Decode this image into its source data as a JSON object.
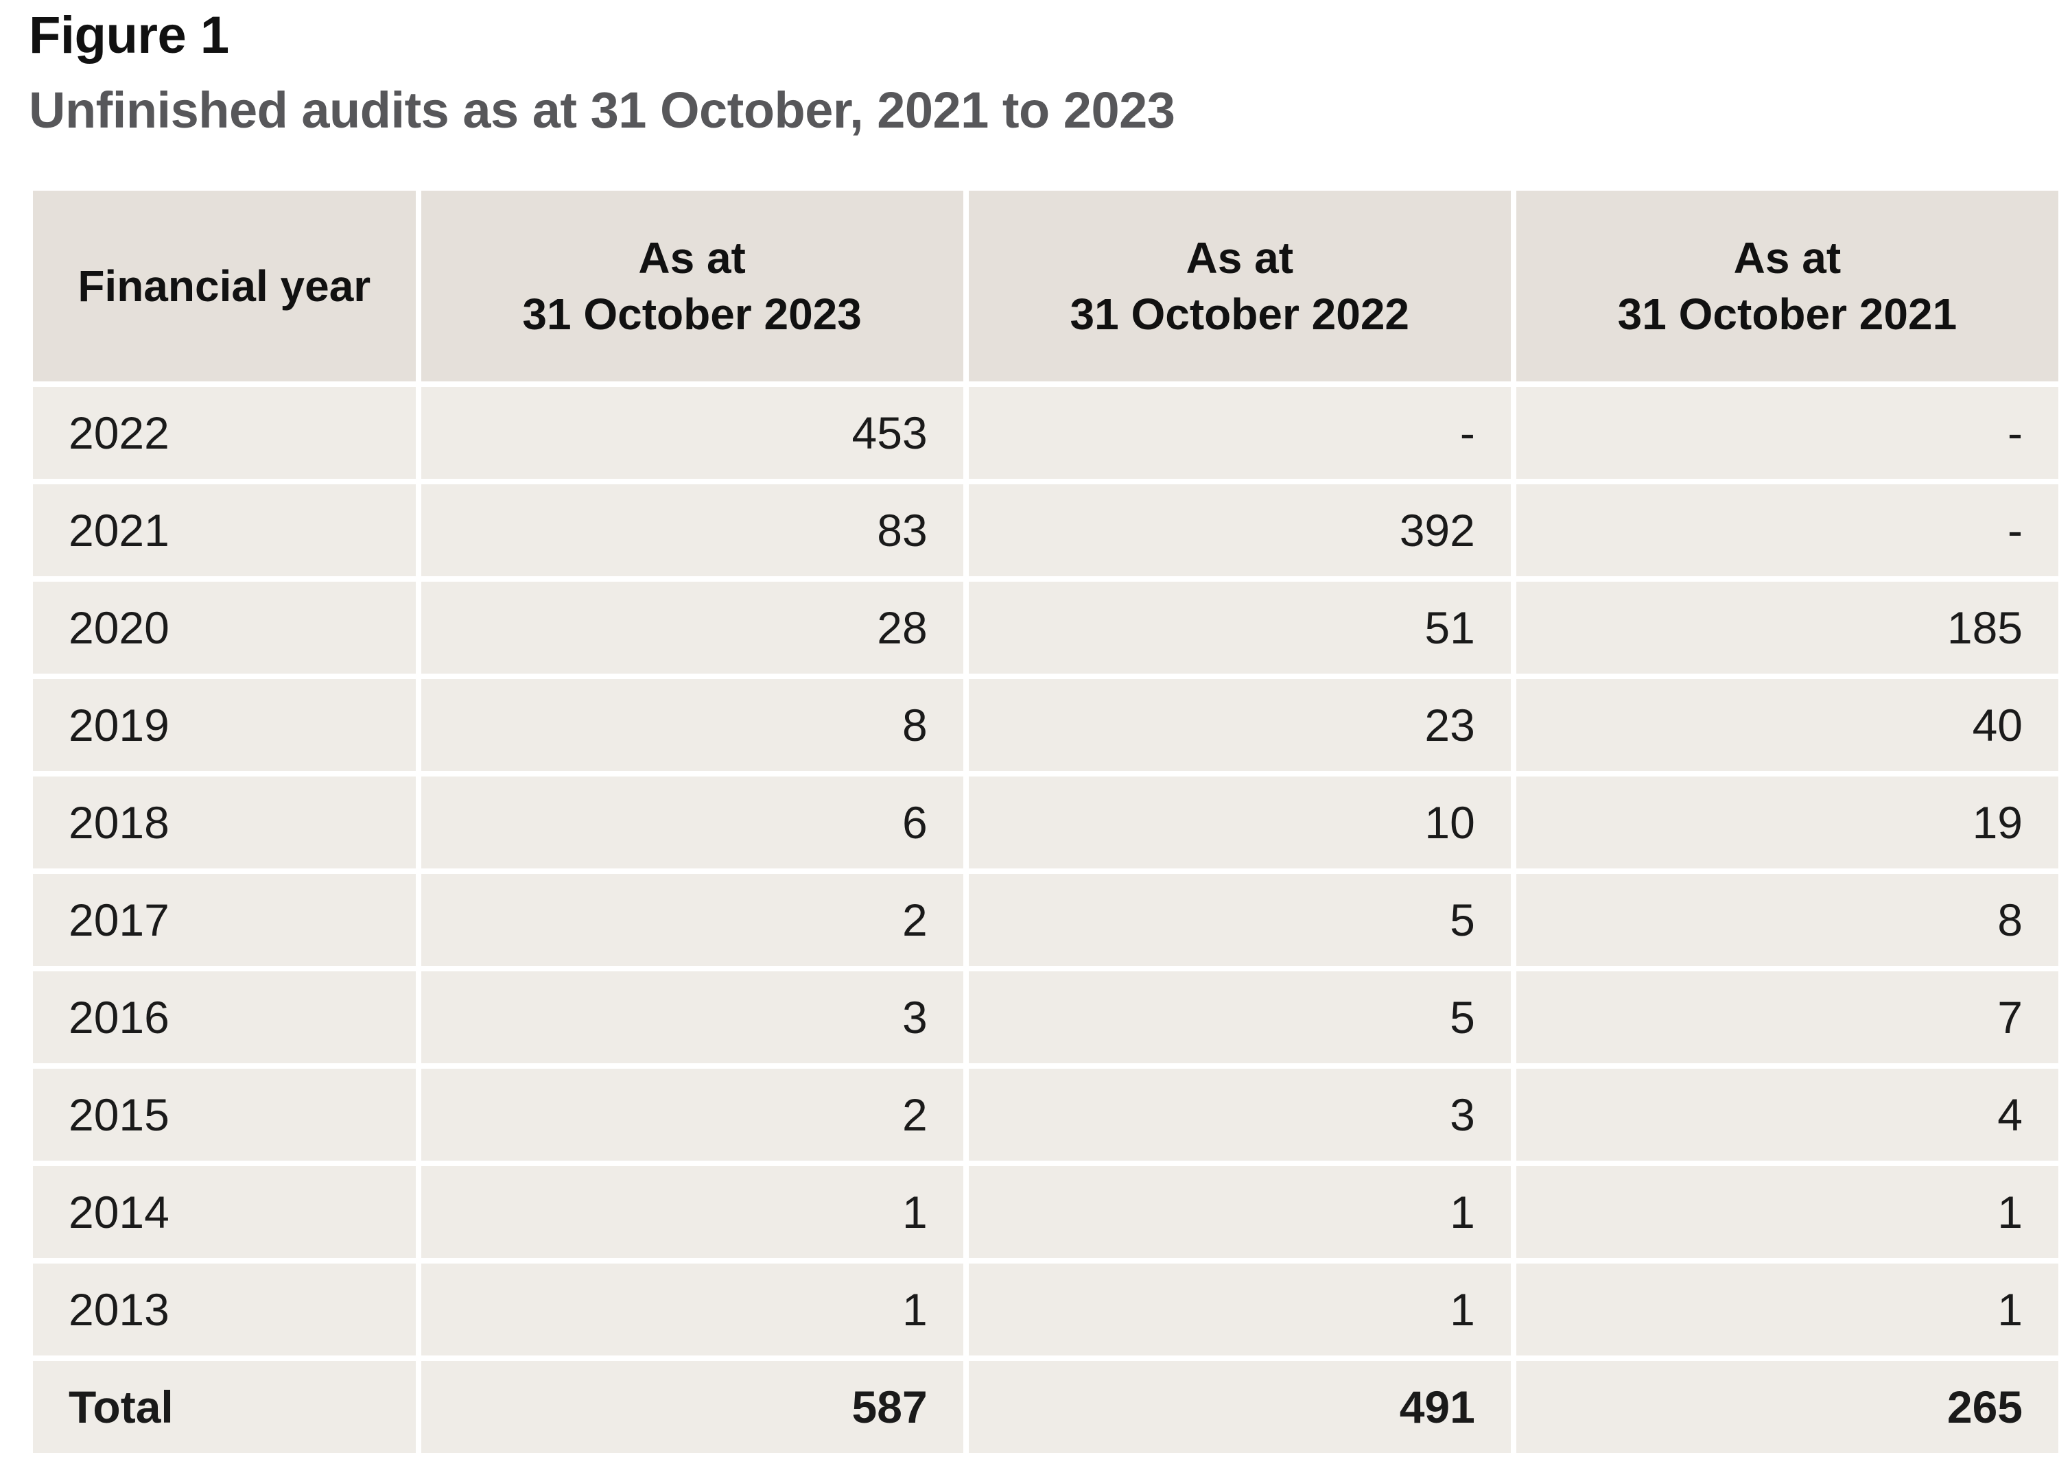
{
  "figure": {
    "label": "Figure 1",
    "title": "Unfinished audits as at 31 October, 2021 to 2023"
  },
  "chart_data": {
    "type": "table",
    "title": "Unfinished audits as at 31 October, 2021 to 2023",
    "columns": [
      {
        "line1": "Financial year",
        "line2": ""
      },
      {
        "line1": "As at",
        "line2": "31 October 2023"
      },
      {
        "line1": "As at",
        "line2": "31 October 2022"
      },
      {
        "line1": "As at",
        "line2": "31 October 2021"
      }
    ],
    "rows": [
      {
        "year": "2022",
        "v2023": "453",
        "v2022": "-",
        "v2021": "-"
      },
      {
        "year": "2021",
        "v2023": "83",
        "v2022": "392",
        "v2021": "-"
      },
      {
        "year": "2020",
        "v2023": "28",
        "v2022": "51",
        "v2021": "185"
      },
      {
        "year": "2019",
        "v2023": "8",
        "v2022": "23",
        "v2021": "40"
      },
      {
        "year": "2018",
        "v2023": "6",
        "v2022": "10",
        "v2021": "19"
      },
      {
        "year": "2017",
        "v2023": "2",
        "v2022": "5",
        "v2021": "8"
      },
      {
        "year": "2016",
        "v2023": "3",
        "v2022": "5",
        "v2021": "7"
      },
      {
        "year": "2015",
        "v2023": "2",
        "v2022": "3",
        "v2021": "4"
      },
      {
        "year": "2014",
        "v2023": "1",
        "v2022": "1",
        "v2021": "1"
      },
      {
        "year": "2013",
        "v2023": "1",
        "v2022": "1",
        "v2021": "1"
      }
    ],
    "total": {
      "label": "Total",
      "v2023": "587",
      "v2022": "491",
      "v2021": "265"
    }
  },
  "colors": {
    "header_bg": "#e5e0da",
    "cell_bg": "#efece7",
    "title_gray": "#57575a"
  }
}
